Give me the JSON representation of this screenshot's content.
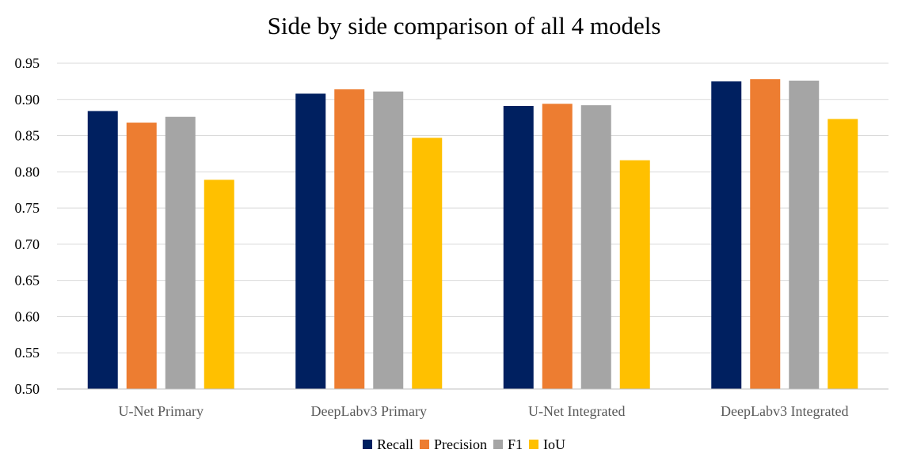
{
  "chart_data": {
    "type": "bar",
    "title": "Side by side comparison of all 4 models",
    "categories": [
      "U-Net Primary",
      "DeepLabv3 Primary",
      "U-Net Integrated",
      "DeepLabv3 Integrated"
    ],
    "series": [
      {
        "name": "Recall",
        "color": "#002060",
        "values": [
          0.884,
          0.908,
          0.891,
          0.925
        ]
      },
      {
        "name": "Precision",
        "color": "#ed7d31",
        "values": [
          0.868,
          0.914,
          0.894,
          0.928
        ]
      },
      {
        "name": "F1",
        "color": "#a5a5a5",
        "values": [
          0.876,
          0.911,
          0.892,
          0.926
        ]
      },
      {
        "name": "IoU",
        "color": "#ffc000",
        "values": [
          0.789,
          0.847,
          0.816,
          0.873
        ]
      }
    ],
    "ylim": [
      0.5,
      0.95
    ],
    "yticks": [
      "0.50",
      "0.55",
      "0.60",
      "0.65",
      "0.70",
      "0.75",
      "0.80",
      "0.85",
      "0.90",
      "0.95"
    ],
    "grid": true,
    "legend": "bottom"
  }
}
